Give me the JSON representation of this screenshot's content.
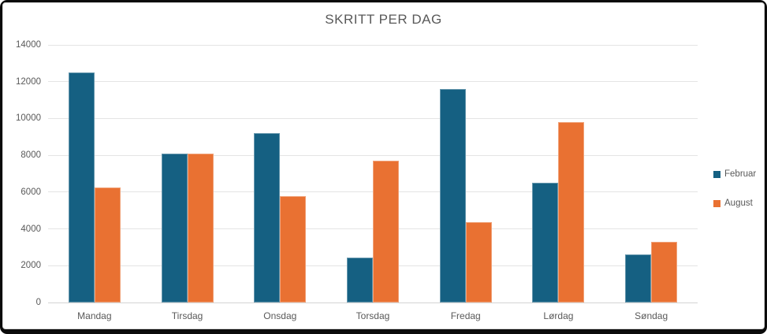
{
  "chart_data": {
    "type": "bar",
    "title": "SKRITT PER DAG",
    "categories": [
      "Mandag",
      "Tirsdag",
      "Onsdag",
      "Torsdag",
      "Fredag",
      "Lørdag",
      "Søndag"
    ],
    "series": [
      {
        "name": "Februar",
        "color": "#156082",
        "values": [
          12500,
          8100,
          9200,
          2450,
          11600,
          6500,
          2600
        ]
      },
      {
        "name": "August",
        "color": "#E97132",
        "values": [
          6250,
          8100,
          5800,
          7700,
          4350,
          9800,
          3300
        ]
      }
    ],
    "xlabel": "",
    "ylabel": "",
    "ylim": [
      0,
      14000
    ],
    "ytick_step": 2000,
    "ytick_labels": [
      "0",
      "2000",
      "4000",
      "6000",
      "8000",
      "10000",
      "12000",
      "14000"
    ],
    "grid": true,
    "legend_position": "right"
  },
  "colors": {
    "frame": "#0b0b0b",
    "background": "#ffffff",
    "gridline": "#e4e4e4",
    "axis_text": "#595959",
    "title_text": "#595959",
    "series_februar": "#156082",
    "series_august": "#E97132"
  }
}
